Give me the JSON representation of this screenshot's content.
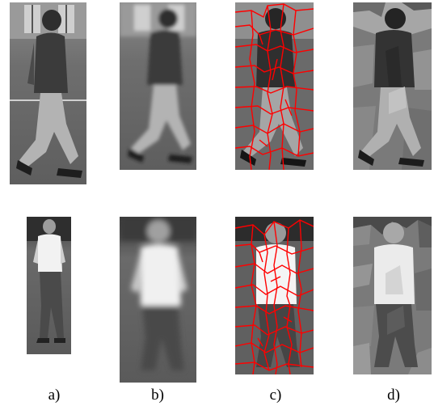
{
  "figure": {
    "labels": [
      "a)",
      "b)",
      "c)",
      "d)"
    ]
  },
  "colors": {
    "background": "#ffffff",
    "segment_boundary": "#ff0000",
    "text": "#000000"
  },
  "panels": {
    "row1": [
      "grayscale-photo-pedestrian",
      "blurred-photo-pedestrian",
      "superpixel-boundaries-overlay",
      "mean-intensity-segmentation"
    ],
    "row2": [
      "grayscale-photo-pedestrian",
      "blurred-photo-pedestrian",
      "superpixel-boundaries-overlay",
      "mean-intensity-segmentation"
    ]
  }
}
